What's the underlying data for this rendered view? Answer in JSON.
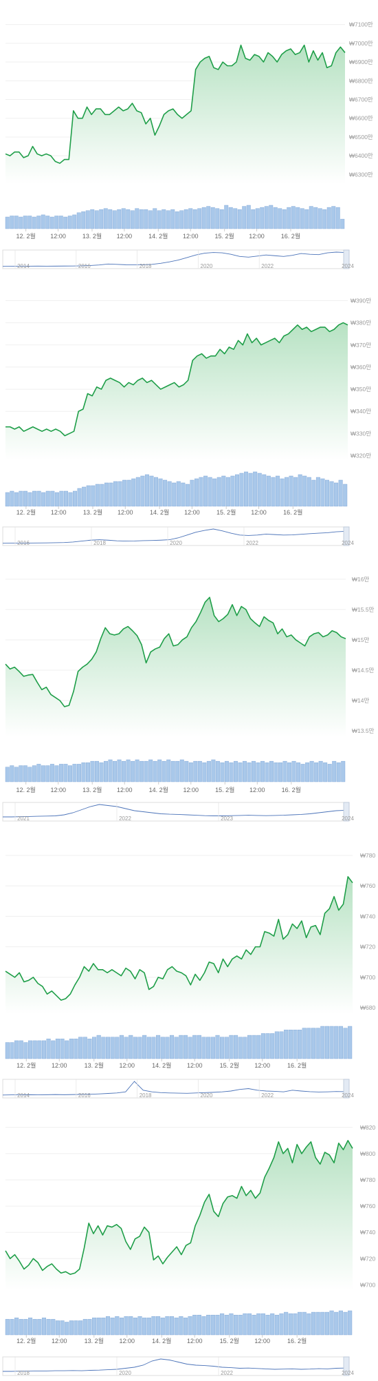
{
  "colors": {
    "line": "#1e9e48",
    "area_top": "#b7e2c3",
    "volume": "#a9c8ea",
    "volume_edge": "#7aa3d4",
    "nav_line": "#4a72b8",
    "nav_window": "#e3eaf4",
    "grid": "#efefef",
    "tick_text": "#9a9a9a"
  },
  "chart_data": [
    {
      "type": "area",
      "x_ticks": [
        "12. 2월",
        "12:00",
        "13. 2월",
        "12:00",
        "14. 2월",
        "12:00",
        "15. 2월",
        "12:00",
        "16. 2월"
      ],
      "y_ticks": [
        "₩7100만",
        "₩7000만",
        "₩6900만",
        "₩6800만",
        "₩6700만",
        "₩6600만",
        "₩6500만",
        "₩6400만",
        "₩6300만"
      ],
      "ylim": [
        6250,
        7150
      ],
      "y_unit": "만 KRW",
      "series": [
        {
          "values": [
            6410,
            6400,
            6420,
            6420,
            6390,
            6400,
            6450,
            6410,
            6400,
            6410,
            6400,
            6370,
            6360,
            6380,
            6380,
            6640,
            6600,
            6600,
            6660,
            6620,
            6650,
            6650,
            6620,
            6620,
            6640,
            6660,
            6640,
            6650,
            6680,
            6640,
            6630,
            6570,
            6600,
            6510,
            6560,
            6620,
            6640,
            6650,
            6620,
            6600,
            6620,
            6640,
            6860,
            6900,
            6920,
            6930,
            6870,
            6860,
            6900,
            6880,
            6880,
            6900,
            6990,
            6920,
            6910,
            6940,
            6930,
            6900,
            6950,
            6930,
            6900,
            6940,
            6960,
            6970,
            6940,
            6950,
            6990,
            6900,
            6960,
            6910,
            6950,
            6870,
            6880,
            6950,
            6980,
            6950
          ]
        }
      ],
      "volume": [
        11,
        12,
        12,
        11,
        12,
        12,
        11,
        12,
        13,
        12,
        11,
        12,
        12,
        11,
        12,
        13,
        15,
        16,
        17,
        18,
        17,
        18,
        19,
        18,
        17,
        18,
        19,
        18,
        17,
        19,
        18,
        18,
        17,
        19,
        17,
        18,
        17,
        18,
        16,
        17,
        18,
        19,
        18,
        19,
        20,
        21,
        20,
        19,
        18,
        22,
        20,
        19,
        18,
        21,
        22,
        18,
        19,
        20,
        21,
        22,
        20,
        19,
        18,
        20,
        21,
        20,
        19,
        18,
        21,
        20,
        19,
        18,
        20,
        21,
        20,
        9
      ],
      "navigator": {
        "labels": [
          "2014",
          "2016",
          "2018",
          "2020",
          "2022",
          "2024"
        ],
        "values": [
          0.3,
          0.4,
          0.5,
          0.5,
          0.6,
          0.5,
          0.6,
          0.7,
          0.8,
          1.0,
          1.5,
          2.2,
          3.5,
          3.0,
          2.5,
          2.4,
          2.6,
          3.0,
          4.5,
          6.5,
          9.0,
          12.5,
          16.0,
          18.5,
          19.5,
          19.0,
          17.0,
          14.0,
          13.0,
          14.5,
          16.0,
          15.0,
          14.0,
          15.5,
          18.0,
          17.0,
          16.5,
          19.0,
          20.0,
          19.5
        ],
        "window_start_label": "2024"
      }
    },
    {
      "type": "area",
      "x_ticks": [
        "12. 2월",
        "12:00",
        "13. 2월",
        "12:00",
        "14. 2월",
        "12:00",
        "15. 2월",
        "12:00",
        "16. 2월"
      ],
      "y_ticks": [
        "₩390만",
        "₩380만",
        "₩370만",
        "₩360만",
        "₩350만",
        "₩340만",
        "₩330만",
        "₩320만"
      ],
      "ylim": [
        318,
        392
      ],
      "y_unit": "만 KRW",
      "series": [
        {
          "values": [
            333,
            333,
            332,
            333,
            331,
            332,
            333,
            332,
            331,
            332,
            331,
            332,
            331,
            329,
            330,
            331,
            340,
            341,
            348,
            347,
            351,
            350,
            354,
            355,
            354,
            353,
            351,
            353,
            352,
            354,
            355,
            353,
            354,
            352,
            350,
            351,
            352,
            353,
            351,
            352,
            354,
            363,
            365,
            366,
            364,
            365,
            365,
            368,
            366,
            369,
            368,
            372,
            370,
            375,
            371,
            373,
            370,
            371,
            372,
            373,
            371,
            374,
            375,
            377,
            379,
            377,
            378,
            376,
            377,
            378,
            378,
            376,
            377,
            379,
            380,
            379
          ]
        }
      ],
      "volume": [
        10,
        11,
        10,
        11,
        11,
        10,
        11,
        11,
        10,
        11,
        11,
        10,
        11,
        11,
        10,
        11,
        13,
        14,
        15,
        15,
        16,
        16,
        17,
        17,
        18,
        18,
        19,
        19,
        20,
        21,
        22,
        23,
        22,
        21,
        20,
        19,
        18,
        17,
        18,
        17,
        16,
        19,
        20,
        21,
        22,
        21,
        20,
        21,
        22,
        21,
        22,
        23,
        24,
        25,
        24,
        25,
        24,
        23,
        22,
        21,
        22,
        20,
        21,
        22,
        21,
        23,
        22,
        21,
        19,
        21,
        20,
        19,
        18,
        17,
        19,
        16
      ],
      "navigator": {
        "labels": [
          "2016",
          "2018",
          "2020",
          "2022",
          "2024"
        ],
        "values": [
          0.2,
          0.3,
          0.3,
          0.4,
          0.5,
          0.6,
          0.8,
          1.0,
          1.5,
          2.5,
          3.5,
          4.0,
          3.5,
          2.8,
          2.5,
          2.6,
          3.0,
          3.2,
          3.5,
          4.0,
          6.0,
          9.0,
          12.0,
          14.0,
          15.5,
          13.5,
          11.0,
          9.0,
          8.5,
          9.0,
          10.0,
          9.5,
          9.0,
          9.2,
          9.8,
          10.5,
          11.0,
          11.5,
          12.5,
          13.0
        ],
        "window_start_label": "2024"
      }
    },
    {
      "type": "area",
      "x_ticks": [
        "12. 2월",
        "12:00",
        "13. 2월",
        "12:00",
        "14. 2월",
        "12:00",
        "15. 2월",
        "12:00",
        "16. 2월"
      ],
      "y_ticks": [
        "₩16만",
        "₩15.5만",
        "₩15만",
        "₩14.5만",
        "₩14만",
        "₩13.5만"
      ],
      "ylim": [
        13.4,
        16.1
      ],
      "y_unit": "만 KRW",
      "series": [
        {
          "values": [
            14.6,
            14.52,
            14.55,
            14.48,
            14.4,
            14.42,
            14.43,
            14.3,
            14.18,
            14.22,
            14.1,
            14.05,
            14.0,
            13.9,
            13.92,
            14.15,
            14.48,
            14.55,
            14.6,
            14.68,
            14.8,
            15.02,
            15.2,
            15.1,
            15.08,
            15.1,
            15.18,
            15.22,
            15.15,
            15.07,
            14.92,
            14.62,
            14.8,
            14.85,
            14.88,
            15.02,
            15.1,
            14.9,
            14.92,
            15.0,
            15.05,
            15.2,
            15.3,
            15.45,
            15.62,
            15.7,
            15.4,
            15.3,
            15.35,
            15.42,
            15.58,
            15.4,
            15.55,
            15.5,
            15.35,
            15.28,
            15.22,
            15.38,
            15.32,
            15.28,
            15.1,
            15.18,
            15.05,
            15.08,
            15.0,
            14.95,
            14.9,
            15.05,
            15.1,
            15.12,
            15.05,
            15.08,
            15.15,
            15.12,
            15.05,
            15.02
          ]
        }
      ],
      "volume": [
        10,
        11,
        10,
        11,
        11,
        10,
        11,
        12,
        11,
        11,
        12,
        11,
        12,
        12,
        11,
        12,
        12,
        13,
        13,
        14,
        14,
        13,
        14,
        15,
        14,
        15,
        14,
        15,
        14,
        15,
        14,
        14,
        15,
        14,
        15,
        14,
        15,
        14,
        14,
        15,
        14,
        13,
        14,
        14,
        13,
        14,
        15,
        14,
        13,
        14,
        13,
        14,
        13,
        14,
        13,
        14,
        13,
        14,
        13,
        14,
        13,
        13,
        14,
        13,
        14,
        13,
        12,
        13,
        14,
        13,
        14,
        13,
        12,
        14,
        13,
        14
      ],
      "navigator": {
        "labels": [
          "2021",
          "2022",
          "2023",
          "2024"
        ],
        "values": [
          1.0,
          1.0,
          1.1,
          1.2,
          1.3,
          1.4,
          1.5,
          2.0,
          3.0,
          4.5,
          6.0,
          7.0,
          6.5,
          6.0,
          5.0,
          4.0,
          3.5,
          3.0,
          2.5,
          2.3,
          2.2,
          2.0,
          1.8,
          1.6,
          1.5,
          1.5,
          1.6,
          1.7,
          1.8,
          1.7,
          1.6,
          1.7,
          1.8,
          2.0,
          2.2,
          2.5,
          3.0,
          3.5,
          4.0,
          4.2
        ],
        "window_start_label": "2024"
      }
    },
    {
      "type": "area",
      "x_ticks": [
        "12. 2월",
        "12:00",
        "13. 2월",
        "12:00",
        "14. 2월",
        "12:00",
        "15. 2월",
        "12:00",
        "16. 2월"
      ],
      "y_ticks": [
        "₩780",
        "₩760",
        "₩740",
        "₩720",
        "₩700",
        "₩680"
      ],
      "ylim": [
        676,
        784
      ],
      "y_unit": "KRW",
      "series": [
        {
          "values": [
            704,
            702,
            700,
            703,
            697,
            698,
            700,
            696,
            694,
            689,
            691,
            688,
            685,
            686,
            689,
            695,
            700,
            707,
            704,
            709,
            705,
            705,
            703,
            705,
            703,
            701,
            706,
            704,
            699,
            705,
            703,
            692,
            694,
            700,
            699,
            705,
            707,
            704,
            703,
            701,
            695,
            702,
            698,
            703,
            710,
            709,
            703,
            712,
            707,
            712,
            714,
            712,
            718,
            715,
            720,
            720,
            730,
            729,
            727,
            738,
            725,
            728,
            735,
            732,
            737,
            726,
            733,
            734,
            728,
            742,
            745,
            753,
            744,
            748,
            766,
            762
          ]
        }
      ],
      "volume": [
        9,
        9,
        10,
        10,
        9,
        10,
        10,
        10,
        10,
        11,
        10,
        11,
        11,
        10,
        11,
        11,
        12,
        12,
        11,
        12,
        13,
        12,
        12,
        12,
        12,
        13,
        12,
        13,
        12,
        12,
        13,
        12,
        12,
        13,
        12,
        12,
        13,
        12,
        13,
        13,
        12,
        13,
        13,
        12,
        12,
        12,
        13,
        12,
        12,
        13,
        13,
        12,
        12,
        13,
        13,
        13,
        14,
        14,
        14,
        15,
        15,
        16,
        16,
        16,
        16,
        17,
        17,
        17,
        17,
        18,
        18,
        18,
        18,
        18,
        17,
        18
      ],
      "navigator": {
        "labels": [
          "2014",
          "2016",
          "2018",
          "2020",
          "2022",
          "2024"
        ],
        "values": [
          0.5,
          0.6,
          0.6,
          0.7,
          0.6,
          0.7,
          0.8,
          0.7,
          0.8,
          0.9,
          1.0,
          1.2,
          1.5,
          1.8,
          2.5,
          9.0,
          3.5,
          2.5,
          2.0,
          1.8,
          1.7,
          1.6,
          1.8,
          2.0,
          2.2,
          2.5,
          3.0,
          4.0,
          4.5,
          3.5,
          3.0,
          2.8,
          2.5,
          3.5,
          3.0,
          2.6,
          2.4,
          2.5,
          2.7,
          2.6
        ],
        "window_start_label": "2024"
      }
    },
    {
      "type": "area",
      "x_ticks": [
        "12. 2월",
        "12:00",
        "13. 2월",
        "12:00",
        "14. 2월",
        "12:00",
        "15. 2월",
        "12:00",
        "16. 2월"
      ],
      "y_ticks": [
        "₩820",
        "₩800",
        "₩780",
        "₩760",
        "₩740",
        "₩720",
        "₩700"
      ],
      "ylim": [
        696,
        822
      ],
      "y_unit": "KRW",
      "series": [
        {
          "values": [
            726,
            720,
            723,
            718,
            712,
            715,
            720,
            717,
            711,
            714,
            716,
            712,
            709,
            710,
            708,
            709,
            712,
            728,
            747,
            739,
            745,
            738,
            745,
            744,
            746,
            743,
            733,
            727,
            735,
            737,
            744,
            740,
            719,
            722,
            716,
            721,
            725,
            729,
            723,
            730,
            732,
            745,
            753,
            763,
            769,
            756,
            752,
            762,
            767,
            768,
            766,
            775,
            768,
            772,
            766,
            770,
            782,
            789,
            797,
            809,
            800,
            804,
            793,
            807,
            800,
            805,
            809,
            797,
            792,
            801,
            799,
            793,
            808,
            803,
            810,
            804
          ]
        }
      ],
      "volume": [
        11,
        11,
        12,
        11,
        11,
        12,
        11,
        11,
        12,
        11,
        11,
        10,
        10,
        9,
        10,
        10,
        10,
        11,
        11,
        12,
        12,
        12,
        13,
        12,
        13,
        12,
        13,
        13,
        12,
        13,
        12,
        12,
        13,
        13,
        12,
        13,
        13,
        12,
        13,
        12,
        13,
        14,
        14,
        13,
        14,
        14,
        14,
        15,
        14,
        15,
        14,
        14,
        15,
        15,
        14,
        15,
        15,
        14,
        15,
        14,
        15,
        16,
        15,
        15,
        16,
        16,
        15,
        16,
        16,
        16,
        16,
        17,
        16,
        17,
        16,
        17
      ],
      "navigator": {
        "labels": [
          "2018",
          "2020",
          "2022",
          "2024"
        ],
        "values": [
          1.0,
          1.0,
          1.1,
          1.1,
          1.2,
          1.2,
          1.3,
          1.3,
          1.4,
          1.3,
          1.5,
          1.6,
          1.8,
          2.0,
          2.5,
          3.0,
          4.0,
          6.0,
          7.0,
          6.5,
          5.5,
          4.5,
          4.0,
          3.8,
          3.5,
          3.0,
          2.8,
          2.5,
          2.6,
          2.4,
          2.2,
          2.0,
          2.1,
          2.2,
          2.0,
          2.1,
          2.3,
          2.2,
          2.5,
          2.6
        ],
        "window_start_label": "2024"
      }
    }
  ]
}
